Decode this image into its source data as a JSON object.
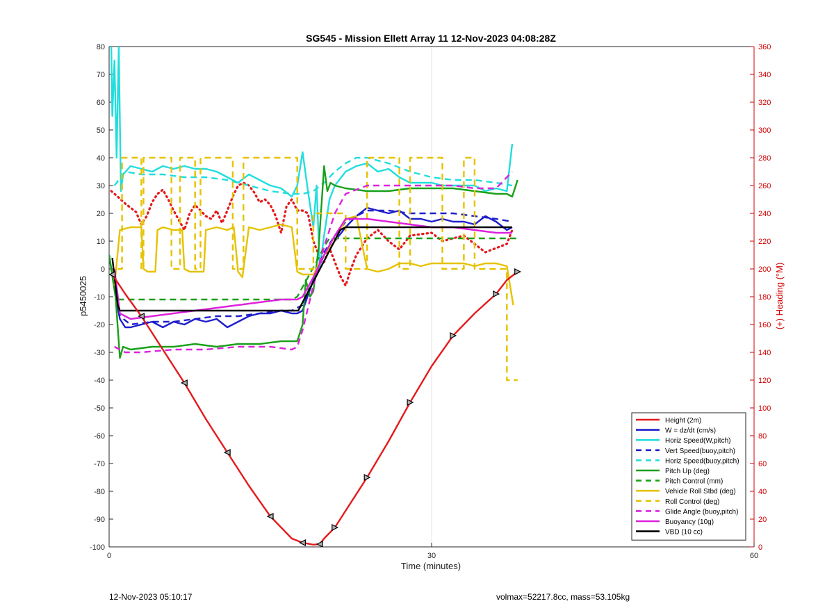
{
  "chart_data": {
    "type": "line",
    "title": "SG545 - Mission Ellett Array 11 12-Nov-2023 04:08:28Z",
    "xlabel": "Time (minutes)",
    "ylabel": "p5450025",
    "y2label": "(+) Heading (°M)",
    "xlim": [
      0,
      60
    ],
    "ylim": [
      -100,
      80
    ],
    "y2lim": [
      0,
      360
    ],
    "x_ticks": [
      "0",
      "30",
      "60"
    ],
    "y_ticks": [
      "80",
      "70",
      "60",
      "50",
      "40",
      "30",
      "20",
      "10",
      "0",
      "-10",
      "-20",
      "-30",
      "-40",
      "-50",
      "-60",
      "-70",
      "-80",
      "-90",
      "-100"
    ],
    "y2_ticks": [
      "360",
      "340",
      "320",
      "300",
      "280",
      "260",
      "240",
      "220",
      "200",
      "180",
      "160",
      "140",
      "120",
      "100",
      "80",
      "60",
      "40",
      "20",
      "0"
    ],
    "grid": "x-only",
    "legend_position": "bottom-right",
    "series": [
      {
        "name": "Height (2m)",
        "color": "#e41a1c",
        "style": "solid",
        "x": [
          0.3,
          1.5,
          3,
          5,
          7,
          9,
          11,
          13,
          15,
          17,
          18,
          19,
          19.6,
          20,
          21,
          22,
          24,
          26,
          28,
          30,
          32,
          34,
          36,
          37,
          38
        ],
        "y": [
          -2,
          -9,
          -17,
          -29,
          -41,
          -54,
          -66,
          -78,
          -89,
          -97,
          -98.5,
          -99.2,
          -99,
          -97,
          -93,
          -87,
          -75,
          -62,
          -48,
          -35,
          -24,
          -16,
          -9,
          -4,
          -1
        ]
      },
      {
        "name": "W = dz/dt (cm/s)",
        "color": "#1f1fcc",
        "style": "solid",
        "x": [
          0,
          0.6,
          1,
          1.5,
          2,
          3,
          4,
          5,
          6,
          7,
          8,
          9,
          10,
          11,
          12,
          13,
          14,
          15,
          16,
          17,
          17.5,
          18,
          19,
          20,
          21,
          22,
          23,
          24,
          25,
          26,
          27,
          28,
          29,
          30,
          31,
          32,
          33,
          34,
          35,
          36,
          37,
          37.5
        ],
        "y": [
          5,
          -10,
          -18,
          -21,
          -21,
          -20,
          -19,
          -21,
          -19,
          -20,
          -18,
          -19,
          -18,
          -21,
          -19,
          -17,
          -16,
          -16,
          -15,
          -16,
          -16,
          -15,
          -4,
          5,
          10,
          15,
          19,
          22,
          21,
          20,
          21,
          18,
          18,
          17,
          18,
          17,
          17,
          16,
          19,
          17,
          14,
          15
        ]
      },
      {
        "name": "Horiz Speed(W,pitch)",
        "color": "#22dddd",
        "style": "solid",
        "x": [
          0.2,
          0.3,
          0.5,
          0.7,
          0.9,
          1.1,
          1.3,
          2,
          3,
          4,
          5,
          6,
          7,
          8,
          9,
          10,
          11,
          12,
          13,
          14,
          15,
          16,
          17,
          17.5,
          18,
          18.5,
          19,
          19.3,
          19.6,
          20,
          20.5,
          21,
          22,
          23,
          24,
          25,
          26,
          27,
          28,
          29,
          30,
          31,
          32,
          33,
          34,
          35,
          36,
          37,
          37.5
        ],
        "y": [
          80,
          55,
          75,
          40,
          80,
          28,
          34,
          37,
          36,
          35,
          37,
          36,
          37,
          36,
          36,
          35,
          33,
          31,
          34,
          32,
          30,
          29,
          26,
          30,
          42,
          28,
          15,
          30,
          0,
          12,
          25,
          30,
          35,
          37,
          38,
          35,
          36,
          33,
          31,
          31,
          31,
          30,
          30,
          30,
          30,
          28,
          29,
          28,
          45
        ]
      },
      {
        "name": "Vert Speed(buoy,pitch)",
        "color": "#1f1fcc",
        "style": "dashed",
        "x": [
          0.5,
          1,
          2,
          4,
          6,
          8,
          10,
          12,
          14,
          16,
          17,
          18,
          19,
          20,
          21,
          22,
          24,
          26,
          28,
          30,
          32,
          34,
          36,
          37.5
        ],
        "y": [
          0,
          -17,
          -20,
          -19,
          -19,
          -18,
          -17,
          -17,
          -16,
          -15,
          -15,
          -13,
          -4,
          6,
          12,
          17,
          21,
          21,
          20,
          20,
          20,
          19,
          18,
          17
        ]
      },
      {
        "name": "Horiz Speed(buoy,pitch)",
        "color": "#22dddd",
        "style": "dashed",
        "x": [
          0.5,
          1.5,
          3,
          5,
          7,
          9,
          11,
          13,
          15,
          17,
          18,
          19,
          20,
          21,
          22,
          23,
          24,
          26,
          28,
          30,
          32,
          34,
          36,
          37.5
        ],
        "y": [
          30,
          35,
          34,
          34,
          33,
          33,
          32,
          30,
          28,
          27,
          27,
          28,
          31,
          35,
          38,
          40,
          40,
          38,
          35,
          33,
          32,
          32,
          31,
          30
        ]
      },
      {
        "name": "Pitch Up (deg)",
        "color": "#1aa01a",
        "style": "solid",
        "x": [
          0,
          0.6,
          1,
          1.3,
          2,
          4,
          6,
          8,
          10,
          12,
          14,
          16,
          17,
          17.5,
          18,
          18.3,
          18.7,
          19,
          19.5,
          20,
          20.3,
          20.6,
          21,
          22,
          24,
          26,
          28,
          30,
          32,
          34,
          36,
          37,
          37.5,
          38
        ],
        "y": [
          5,
          -10,
          -32,
          -28,
          -29,
          -28,
          -28,
          -27,
          -28,
          -27,
          -27,
          -26,
          -26,
          -26,
          -20,
          -4,
          -10,
          -8,
          8,
          37,
          28,
          31,
          30,
          29,
          28,
          28,
          29,
          29,
          29,
          28,
          27,
          27,
          26,
          32
        ]
      },
      {
        "name": "Pitch Control (mm)",
        "color": "#1aa01a",
        "style": "dashed",
        "x": [
          0.8,
          17,
          17.5,
          18.5,
          19.5,
          20,
          20.5,
          38
        ],
        "y": [
          -11,
          -11,
          -10,
          -3,
          4,
          8,
          11,
          11
        ]
      },
      {
        "name": "Vehicle Roll Stbd (deg)",
        "color": "#e6c200",
        "style": "solid",
        "x": [
          0.5,
          1,
          2,
          3,
          3.2,
          3.6,
          4.3,
          4.5,
          5,
          6,
          6.8,
          7,
          7.5,
          8.8,
          9,
          10,
          11,
          11.6,
          12,
          12.4,
          13,
          14,
          15,
          16,
          17,
          17.5,
          18,
          19,
          20,
          21,
          22,
          23,
          24,
          25,
          26,
          27,
          28,
          29,
          30,
          31,
          32,
          33,
          34,
          35,
          36,
          37,
          37.3,
          37.6
        ],
        "y": [
          -6,
          14,
          15,
          15,
          0,
          -1,
          -1,
          14,
          15,
          14,
          14,
          0,
          -1,
          -1,
          14,
          15,
          14,
          15,
          -1,
          -3,
          15,
          14,
          15,
          16,
          15,
          -1,
          -2,
          -2,
          5,
          10,
          18,
          19,
          0,
          -1,
          0,
          2,
          2,
          1,
          2,
          2,
          2,
          2,
          1,
          2,
          2,
          1,
          -6,
          -13
        ]
      },
      {
        "name": "Roll Control (deg)",
        "color": "#e6c200",
        "style": "dashed",
        "x": [
          0.8,
          1.2,
          1.2,
          3,
          3,
          3.2,
          3.2,
          5.8,
          5.8,
          6.6,
          6.6,
          8,
          8,
          8.5,
          8.5,
          11.5,
          11.5,
          12.5,
          12.5,
          17.5,
          17.5,
          19,
          19,
          22,
          22,
          24,
          24,
          27,
          27,
          28,
          28,
          31,
          31,
          33,
          33,
          34,
          34,
          37,
          37,
          38
        ],
        "y": [
          0,
          0,
          40,
          40,
          0,
          0,
          40,
          40,
          0,
          0,
          40,
          40,
          0,
          0,
          40,
          40,
          0,
          0,
          40,
          40,
          0,
          0,
          20,
          20,
          0,
          0,
          40,
          40,
          0,
          0,
          40,
          40,
          0,
          0,
          40,
          40,
          0,
          0,
          -40,
          -40
        ]
      },
      {
        "name": "Glide Angle (buoy,pitch)",
        "color": "#dd22dd",
        "style": "dashed",
        "x": [
          0.5,
          1.5,
          3,
          6,
          9,
          12,
          15,
          17,
          17.5,
          18,
          19,
          20,
          21,
          22,
          24,
          26,
          28,
          30,
          32,
          34,
          36,
          37.5
        ],
        "y": [
          -28,
          -30,
          -30,
          -29,
          -29,
          -28,
          -28,
          -29,
          -28,
          -22,
          -6,
          8,
          20,
          27,
          30,
          30,
          30,
          30,
          30,
          29,
          29,
          35
        ]
      },
      {
        "name": "Buoyancy (10g)",
        "color": "#dd22dd",
        "style": "solid",
        "x": [
          0.5,
          1,
          2,
          4,
          6,
          8,
          10,
          12,
          14,
          16,
          17,
          17.5,
          18,
          19,
          20,
          21,
          22,
          24,
          26,
          28,
          30,
          32,
          34,
          36,
          37.5
        ],
        "y": [
          0,
          -16,
          -18,
          -17,
          -16,
          -15,
          -14,
          -13,
          -12,
          -11,
          -11,
          -11,
          -10,
          -3,
          5,
          12,
          18,
          18,
          17,
          16,
          15,
          15,
          14,
          13,
          13
        ]
      },
      {
        "name": "VBD (10 cc)",
        "color": "#000000",
        "style": "solid",
        "x": [
          0.3,
          0.8,
          1,
          17,
          17.6,
          21.5,
          22,
          37.5
        ],
        "y": [
          4,
          -13,
          -15,
          -15,
          -15,
          14,
          15,
          15
        ]
      },
      {
        "name": "Heading",
        "color": "#e41a1c",
        "style": "dotted",
        "axis": "right",
        "x": [
          0.2,
          0.8,
          1.5,
          2.5,
          3,
          3.5,
          4,
          4.5,
          5,
          5.5,
          6,
          6.5,
          7,
          7.5,
          8,
          8.5,
          9,
          9.5,
          10,
          10.5,
          11,
          11.5,
          12,
          12.5,
          13,
          13.5,
          14,
          14.5,
          15,
          15.5,
          16,
          16.5,
          17,
          17.5,
          18,
          18.5,
          19,
          19.5,
          20,
          20.5,
          21,
          21.5,
          22,
          22.5,
          23,
          24,
          25,
          26,
          27,
          28,
          29,
          30,
          31,
          32,
          33,
          34,
          35,
          36,
          37,
          37.5
        ],
        "y": [
          256,
          252,
          247,
          241,
          232,
          238,
          248,
          254,
          257,
          250,
          242,
          235,
          228,
          240,
          246,
          242,
          238,
          236,
          242,
          233,
          242,
          252,
          260,
          262,
          260,
          255,
          248,
          250,
          246,
          238,
          226,
          245,
          250,
          242,
          242,
          240,
          220,
          210,
          205,
          215,
          205,
          195,
          188,
          200,
          210,
          222,
          228,
          220,
          214,
          224,
          225,
          226,
          220,
          222,
          224,
          218,
          212,
          215,
          218,
          228
        ]
      }
    ],
    "annotations": [
      "12-Nov-2023 05:10:17",
      "volmax=52217.8cc, mass=53.105kg"
    ]
  }
}
